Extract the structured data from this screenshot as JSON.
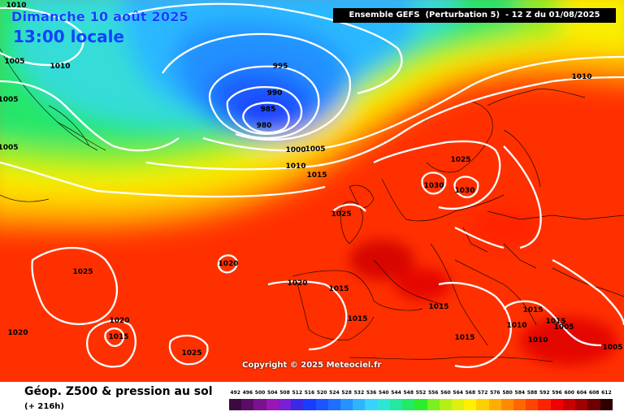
{
  "header": {
    "date": "Dimanche 10 août 2025",
    "local_time": "13:00 locale",
    "model_run": "Ensemble GEFS  (Perturbation 5)  - 12 Z du 01/08/2025"
  },
  "copyright": "Copyright © 2025 Meteociel.fr",
  "footer": {
    "title": "Géop. Z500 & pression au sol",
    "lead_time": "(+ 216h)"
  },
  "legend": {
    "labels": [
      "492",
      "496",
      "500",
      "504",
      "508",
      "512",
      "516",
      "520",
      "524",
      "528",
      "532",
      "536",
      "540",
      "544",
      "548",
      "552",
      "556",
      "560",
      "564",
      "568",
      "572",
      "576",
      "580",
      "584",
      "588",
      "592",
      "596",
      "600",
      "604",
      "608",
      "612"
    ],
    "colors": [
      "#3b0a3e",
      "#5b0c66",
      "#7b1190",
      "#9a16b8",
      "#7a1ed8",
      "#3c28e8",
      "#1a3cff",
      "#1c55ff",
      "#1e6eff",
      "#2492ff",
      "#2db4ff",
      "#38d2ff",
      "#2ee6d6",
      "#22e8a0",
      "#20ea66",
      "#2aee2a",
      "#7af01e",
      "#b4f014",
      "#e0f00e",
      "#fff000",
      "#ffd000",
      "#ffae00",
      "#ff8a00",
      "#ff6600",
      "#ff4400",
      "#ff2200",
      "#f00000",
      "#c80000",
      "#a00000",
      "#700000",
      "#300000"
    ]
  },
  "isobar_labels": [
    "1010",
    "1005",
    "1010",
    "1005",
    "1005",
    "995",
    "990",
    "985",
    "980",
    "1000",
    "1005",
    "1010",
    "1015",
    "1025",
    "1030",
    "1030",
    "1025",
    "1010",
    "1025",
    "1020",
    "1020",
    "1015",
    "1015",
    "1020",
    "1015",
    "1015",
    "1015",
    "1025",
    "1015",
    "1015",
    "1010",
    "1010",
    "1005",
    "1005",
    "1020"
  ]
}
